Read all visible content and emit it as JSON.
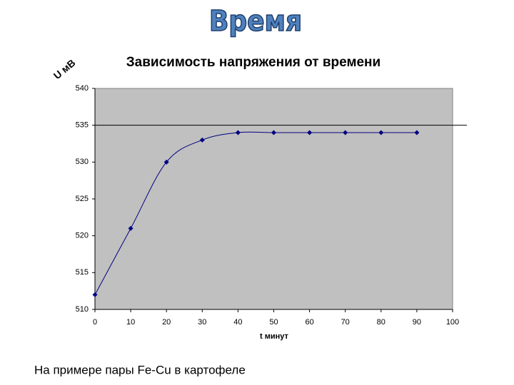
{
  "slide_title": "Время",
  "caption": "На примере пары Fe-Cu в картофеле",
  "chart_data": {
    "type": "line",
    "title": "Зависимость напряжения от времени",
    "y_label": "U мВ",
    "x_label": "t минут",
    "x": [
      0,
      10,
      20,
      30,
      40,
      50,
      60,
      70,
      80,
      90
    ],
    "series": [
      {
        "name": "U",
        "color": "#000080",
        "values": [
          512,
          521,
          530,
          533,
          534,
          534,
          534,
          534,
          534,
          534
        ]
      }
    ],
    "xlim": [
      0,
      100
    ],
    "xticks": [
      0,
      10,
      20,
      30,
      40,
      50,
      60,
      70,
      80,
      90,
      100
    ],
    "ylim": [
      510,
      540
    ],
    "yticks": [
      510,
      515,
      520,
      525,
      530,
      535,
      540
    ],
    "hlines": [
      535
    ],
    "smooth": true,
    "plot_background": "#c0c0c0"
  }
}
